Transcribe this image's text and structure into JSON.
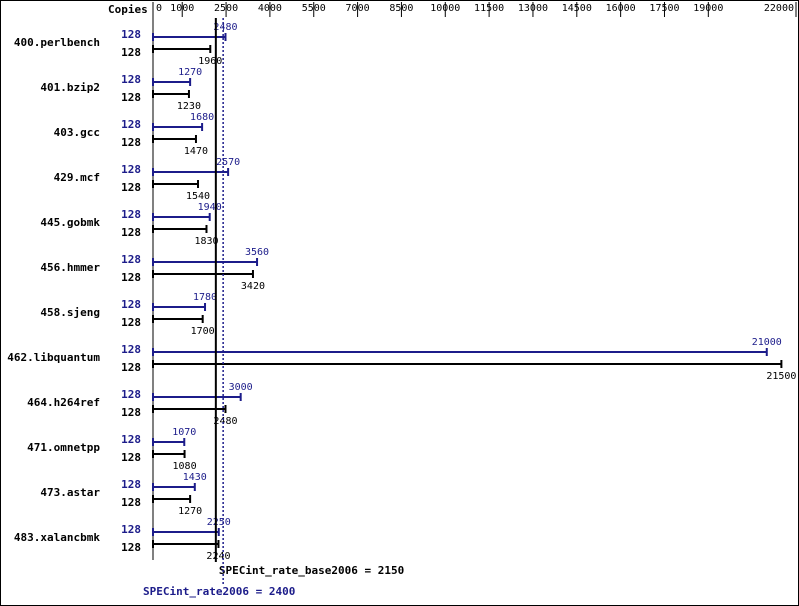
{
  "chart_data": {
    "type": "bar",
    "copies_label": "Copies",
    "categories": [
      "400.perlbench",
      "401.bzip2",
      "403.gcc",
      "429.mcf",
      "445.gobmk",
      "456.hmmer",
      "458.sjeng",
      "462.libquantum",
      "464.h264ref",
      "471.omnetpp",
      "473.astar",
      "483.xalancbmk"
    ],
    "series": [
      {
        "color": "#1c1c8a",
        "copies": [
          128,
          128,
          128,
          128,
          128,
          128,
          128,
          128,
          128,
          128,
          128,
          128
        ],
        "values": [
          2480,
          1270,
          1680,
          2570,
          1940,
          3560,
          1780,
          21000,
          3000,
          1070,
          1430,
          2250
        ]
      },
      {
        "color": "#000000",
        "copies": [
          128,
          128,
          128,
          128,
          128,
          128,
          128,
          128,
          128,
          128,
          128,
          128
        ],
        "values": [
          1960,
          1230,
          1470,
          1540,
          1830,
          3420,
          1700,
          21500,
          2480,
          1080,
          1270,
          2240
        ]
      }
    ],
    "xlim": [
      0,
      22000
    ],
    "xticks": [
      0,
      1000,
      2500,
      4000,
      5500,
      7000,
      8500,
      10000,
      11500,
      13000,
      14500,
      16000,
      17500,
      19000,
      22000
    ],
    "reference_lines": [
      {
        "value": 2150,
        "label": "SPECint_rate_base2006 = 2150",
        "color": "#000000",
        "dashed": false
      },
      {
        "value": 2400,
        "label": "SPECint_rate2006 = 2400",
        "color": "#1c1c8a",
        "dashed": true
      }
    ]
  }
}
